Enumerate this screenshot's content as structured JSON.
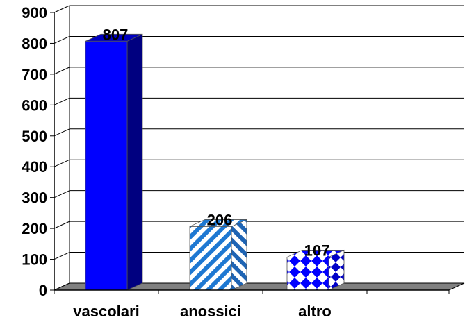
{
  "chart_data": {
    "type": "bar",
    "style": "3d-column",
    "categories": [
      "vascolari",
      "anossici",
      "altro"
    ],
    "values": [
      807,
      206,
      107
    ],
    "data_labels": [
      "807",
      "206",
      "107"
    ],
    "title": "",
    "xlabel": "",
    "ylabel": "",
    "ylim": [
      0,
      900
    ],
    "yticks": [
      0,
      100,
      200,
      300,
      400,
      500,
      600,
      700,
      800,
      900
    ],
    "grid": true,
    "legend": "none",
    "fills": [
      {
        "pattern": "solid",
        "front": "#0000ff",
        "side": "#000080",
        "top": "#0000c0"
      },
      {
        "pattern": "diagonal-stripes",
        "front": "#1e78d2",
        "side": "#1e64b4",
        "top": "#1e78d2",
        "background": "#ffffff"
      },
      {
        "pattern": "checkerboard-diamonds",
        "front": "#0000ff",
        "side": "#0000c8",
        "top": "#0000ff",
        "background": "#ffffff"
      }
    ],
    "floor_color": "#808080",
    "wall_line_color": "#000000"
  }
}
